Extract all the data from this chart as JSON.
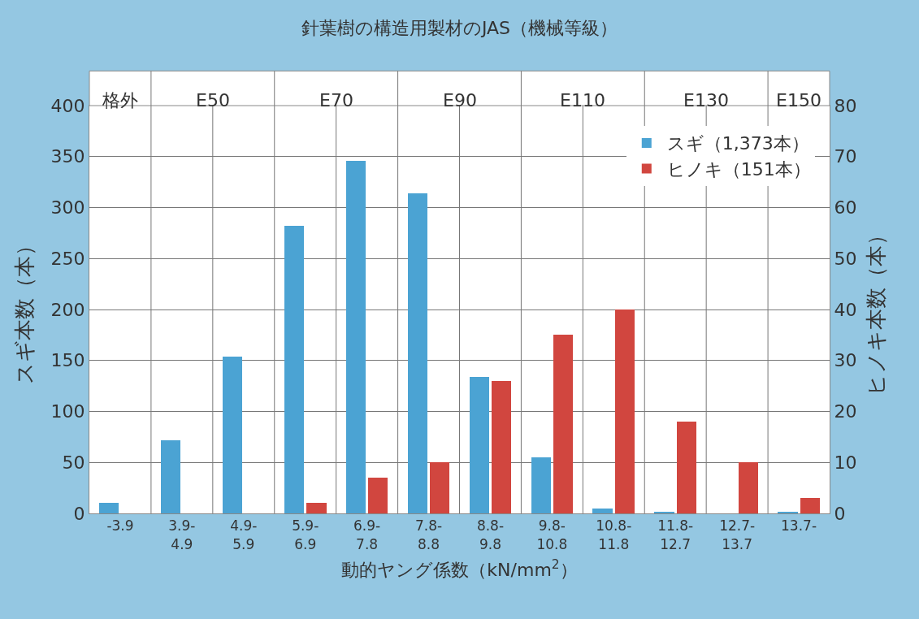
{
  "chart_data": {
    "type": "bar",
    "title": "針葉樹の構造用製材のJAS（機械等級）",
    "categories": [
      "-3.9",
      "3.9-4.9",
      "4.9-5.9",
      "5.9-6.9",
      "6.9-7.8",
      "7.8-8.8",
      "8.8-9.8",
      "9.8-10.8",
      "10.8-11.8",
      "11.8-12.7",
      "12.7-13.7",
      "13.7-"
    ],
    "series": [
      {
        "name": "スギ（1,373本）",
        "color": "#4ba3d3",
        "values": [
          10,
          72,
          154,
          282,
          346,
          314,
          134,
          55,
          5,
          1,
          null,
          1
        ]
      },
      {
        "name": "ヒノキ（151本）",
        "color": "#d1463f",
        "axis": "y2",
        "values": [
          null,
          null,
          null,
          2,
          7,
          10,
          26,
          35,
          40,
          18,
          10,
          3
        ]
      }
    ],
    "xlabel": "動的ヤング係数（kN/mm$^{2}$）",
    "ylabel": "スギ本数（本）",
    "y2label": "ヒノキ本数（本）",
    "ylim": [
      0,
      400
    ],
    "yticks": [
      0,
      50,
      100,
      150,
      200,
      250,
      300,
      350,
      400
    ],
    "y2lim": [
      0,
      80
    ],
    "y2ticks": [
      0,
      10,
      20,
      30,
      40,
      50,
      60,
      70,
      80
    ],
    "annotations": [
      "格外",
      "E50",
      "E70",
      "E90",
      "E110",
      "E130",
      "E150"
    ],
    "grid": true,
    "legend": "top right"
  }
}
